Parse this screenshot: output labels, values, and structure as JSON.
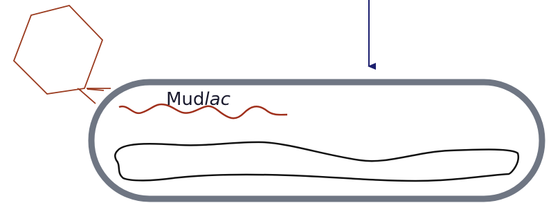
{
  "mudlac_label": {
    "roman": "Mud",
    "italic": "lac"
  }
}
